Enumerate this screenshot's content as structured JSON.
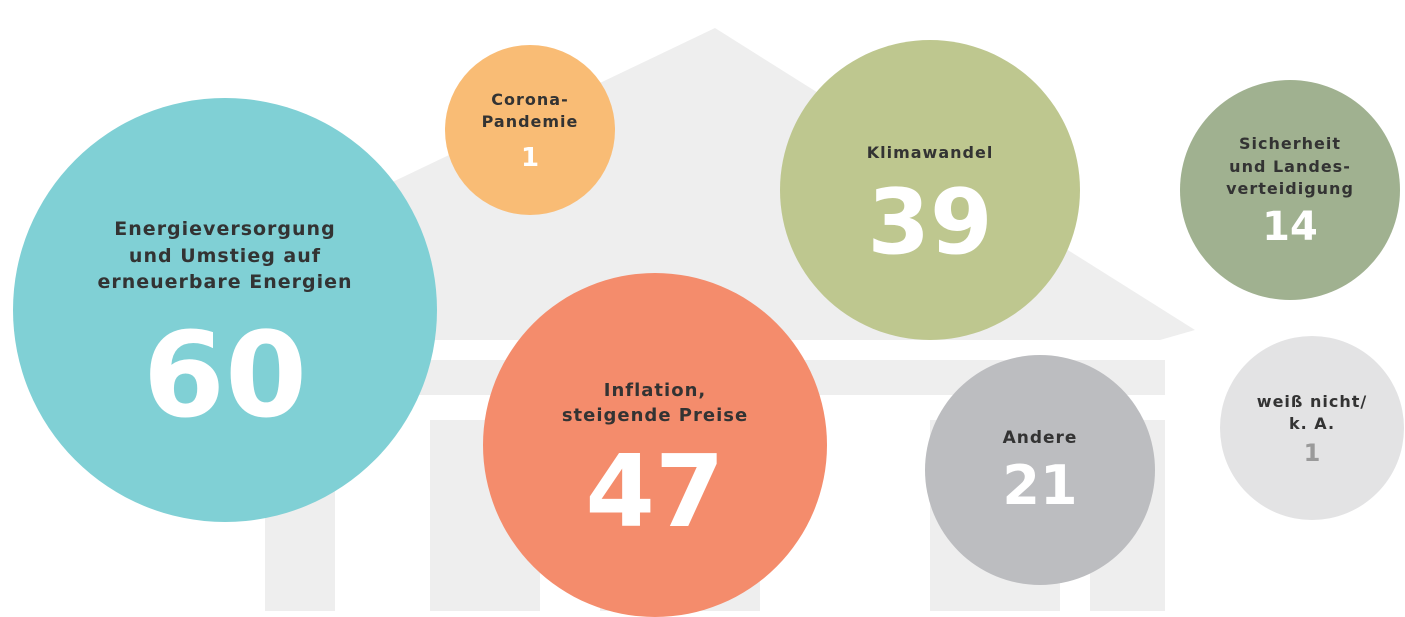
{
  "chart_data": {
    "type": "bubble",
    "categories": [
      "Energieversorgung\nund Umstieg auf\nerneuerbare Energien",
      "Corona-\nPandemie",
      "Klimawandel",
      "Sicherheit\nund Landes-\nverteidigung",
      "Inflation,\nsteigende Preise",
      "Andere",
      "weiß nicht/\nk. A."
    ],
    "values": [
      60,
      1,
      39,
      14,
      47,
      21,
      1
    ],
    "colors": [
      "#80d0d5",
      "#f9bc75",
      "#bec78f",
      "#a0b190",
      "#f48c6c",
      "#bcbdc0",
      "#e3e3e4"
    ]
  }
}
